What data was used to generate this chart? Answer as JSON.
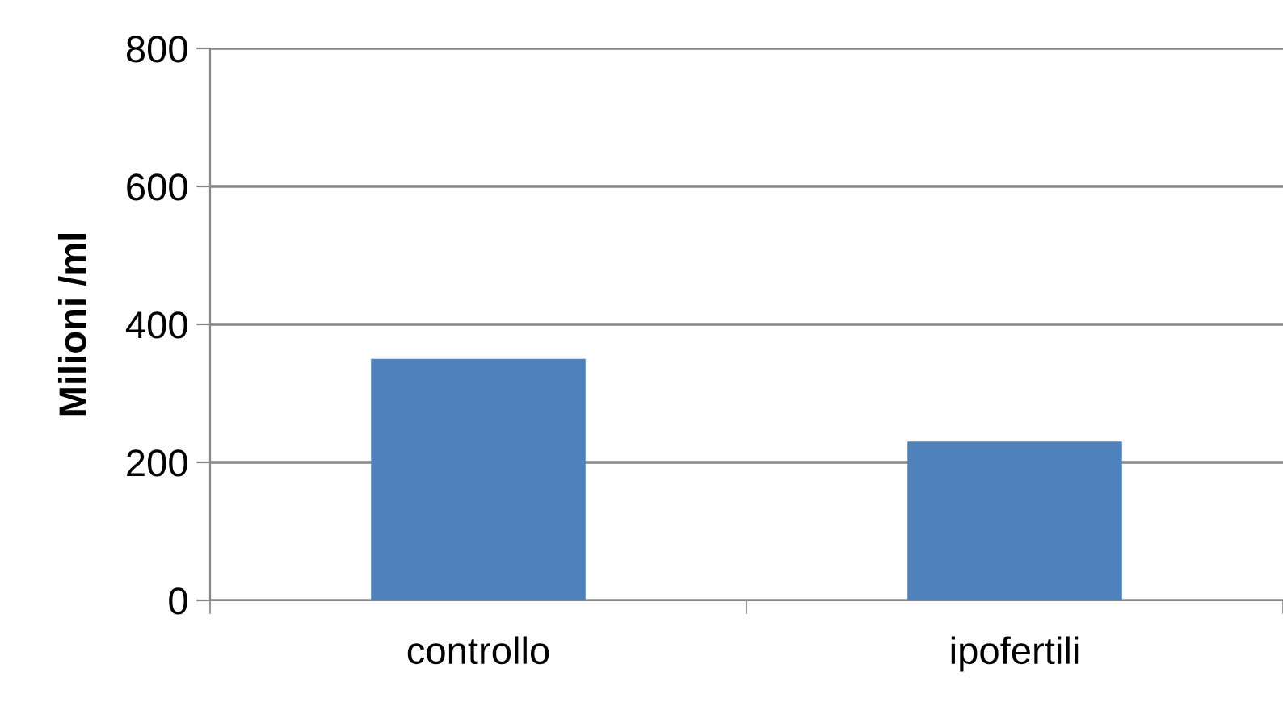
{
  "chart_data": {
    "type": "bar",
    "ylabel": "Milioni /ml",
    "categories": [
      "controllo",
      "ipofertili"
    ],
    "values": [
      350,
      230
    ],
    "color": "#4f81bd",
    "ylim": [
      0,
      800
    ],
    "yticks": [
      0,
      200,
      400,
      600,
      800
    ],
    "grid": "y",
    "legend": false
  }
}
